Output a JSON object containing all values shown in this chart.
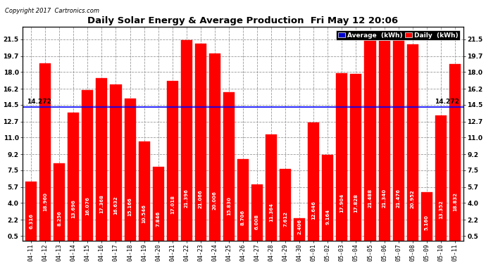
{
  "title": "Daily Solar Energy & Average Production  Fri May 12 20:06",
  "copyright": "Copyright 2017  Cartronics.com",
  "average_label": "14.272",
  "average_value": 14.272,
  "categories": [
    "04-11",
    "04-12",
    "04-13",
    "04-14",
    "04-15",
    "04-16",
    "04-17",
    "04-18",
    "04-19",
    "04-20",
    "04-21",
    "04-22",
    "04-23",
    "04-24",
    "04-25",
    "04-26",
    "04-27",
    "04-28",
    "04-29",
    "04-30",
    "05-01",
    "05-02",
    "05-03",
    "05-04",
    "05-05",
    "05-06",
    "05-07",
    "05-08",
    "05-09",
    "05-10",
    "05-11"
  ],
  "values": [
    6.316,
    18.96,
    8.256,
    13.696,
    16.076,
    17.368,
    16.632,
    15.166,
    10.546,
    7.846,
    17.018,
    21.396,
    21.066,
    20.006,
    15.83,
    8.706,
    6.008,
    11.364,
    7.612,
    2.406,
    12.646,
    9.164,
    17.904,
    17.828,
    21.488,
    21.34,
    21.476,
    20.952,
    5.16,
    13.352,
    18.832
  ],
  "bar_color": "#ff0000",
  "avg_line_color": "#0000ff",
  "background_color": "#ffffff",
  "grid_color": "#999999",
  "yticks": [
    0.5,
    2.2,
    4.0,
    5.7,
    7.5,
    9.2,
    11.0,
    12.7,
    14.5,
    16.2,
    18.0,
    19.7,
    21.5
  ],
  "ylim": [
    0.0,
    22.8
  ],
  "legend_avg_color": "#0000cc",
  "legend_daily_color": "#ff0000",
  "legend_avg_text": "Average  (kWh)",
  "legend_daily_text": "Daily  (kWh)"
}
